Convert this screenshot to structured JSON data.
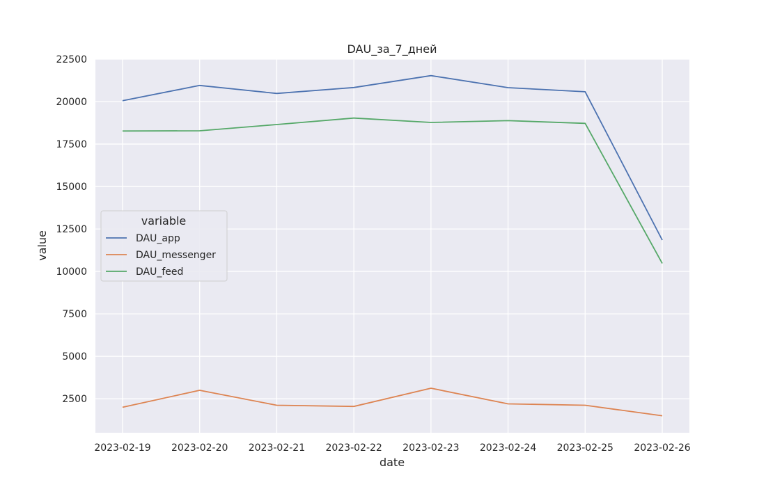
{
  "chart_data": {
    "type": "line",
    "title": "DAU_за_7_дней",
    "xlabel": "date",
    "ylabel": "value",
    "x": [
      "2023-02-19",
      "2023-02-20",
      "2023-02-21",
      "2023-02-22",
      "2023-02-23",
      "2023-02-24",
      "2023-02-25",
      "2023-02-26"
    ],
    "ylim": [
      500,
      22500
    ],
    "yticks": [
      2500,
      5000,
      7500,
      10000,
      12500,
      15000,
      17500,
      20000,
      22500
    ],
    "grid": true,
    "background": "#eaeaf2",
    "legend": {
      "title": "variable",
      "placement": "center-left"
    },
    "series": [
      {
        "name": "DAU_app",
        "color": "#4c72b0",
        "values": [
          20050,
          20950,
          20480,
          20830,
          21530,
          20820,
          20580,
          11850
        ]
      },
      {
        "name": "DAU_messenger",
        "color": "#dd8452",
        "values": [
          2000,
          3000,
          2120,
          2050,
          3120,
          2200,
          2120,
          1500
        ]
      },
      {
        "name": "DAU_feed",
        "color": "#55a868",
        "values": [
          18270,
          18280,
          18650,
          19030,
          18770,
          18880,
          18720,
          10470
        ]
      }
    ]
  }
}
